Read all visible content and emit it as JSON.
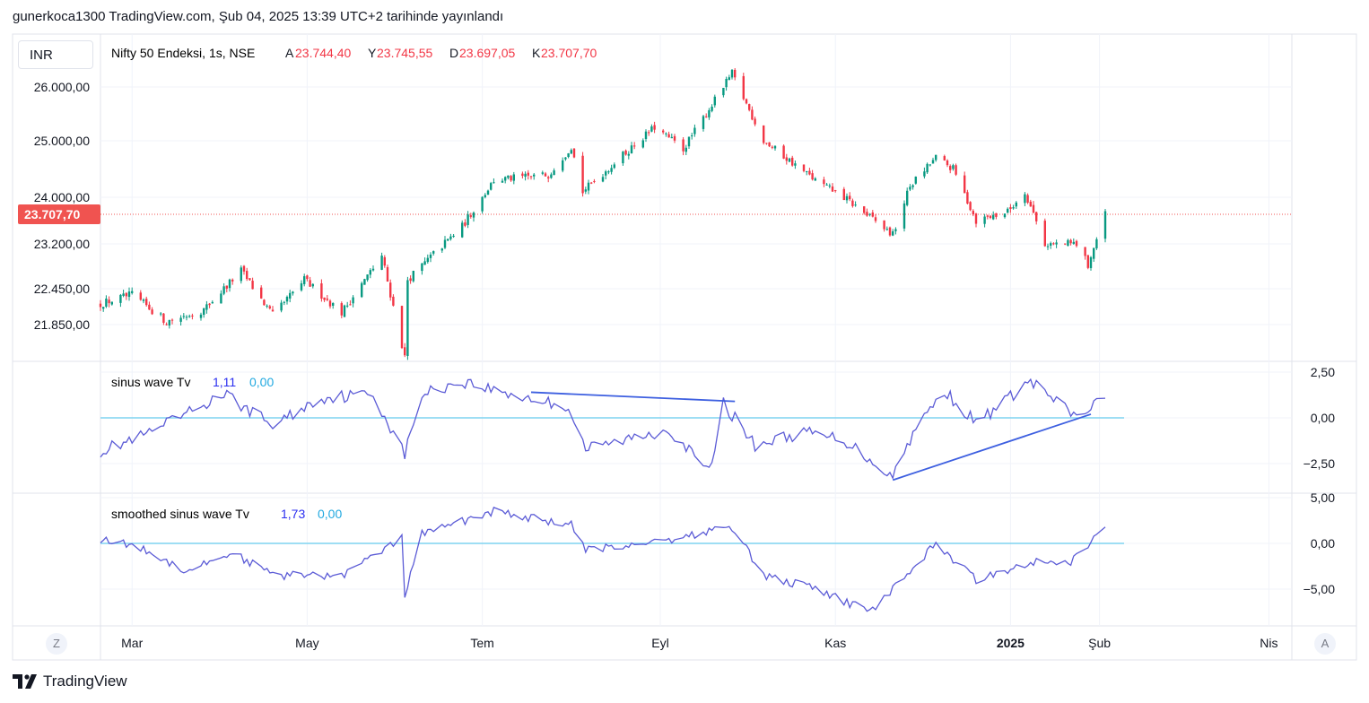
{
  "header": {
    "published_line": "gunerkoca1300 TradingView.com, Şub 04, 2025 13:39 UTC+2 tarihinde yayınlandı"
  },
  "currency_button": "INR",
  "main_pane": {
    "symbol": "Nifty 50 Endeksi, 1s, NSE",
    "ohlc": [
      {
        "k": "A",
        "v": "23.744,40"
      },
      {
        "k": "Y",
        "v": "23.745,55"
      },
      {
        "k": "D",
        "v": "23.697,05"
      },
      {
        "k": "K",
        "v": "23.707,70"
      }
    ],
    "price_ticks": [
      "26.000,00",
      "25.000,00",
      "24.000,00",
      "23.200,00",
      "22.450,00",
      "21.850,00"
    ],
    "last_price_label": "23.707,70",
    "last_price": 23707.7
  },
  "sinus_pane": {
    "title": "sinus wave Tv",
    "v1": "1,11",
    "v2": "0,00",
    "ticks": [
      "2,50",
      "0,00",
      "−2,50"
    ]
  },
  "smoothed_pane": {
    "title": "smoothed sinus wave Tv",
    "v1": "1,73",
    "v2": "0,00",
    "ticks": [
      "5,00",
      "0,00",
      "−5,00"
    ]
  },
  "time_axis": {
    "labels": [
      {
        "text": "Mar",
        "bold": false
      },
      {
        "text": "May",
        "bold": false
      },
      {
        "text": "Tem",
        "bold": false
      },
      {
        "text": "Eyl",
        "bold": false
      },
      {
        "text": "Kas",
        "bold": false
      },
      {
        "text": "2025",
        "bold": true
      },
      {
        "text": "Şub",
        "bold": false
      },
      {
        "text": "Nis",
        "bold": false
      }
    ]
  },
  "buttons": {
    "z_label": "Z",
    "a_label": "A"
  },
  "footer": {
    "logo_text": "TradingView"
  },
  "colors": {
    "up": "#089981",
    "down": "#f23645",
    "osc": "#5b5bd6",
    "zero_line": "#7fd3f0",
    "trend_line": "#3d5fe0",
    "last_price_bg": "#f05350",
    "label_blue": "#2a2ef0",
    "label_cyan": "#22a9e0"
  },
  "chart_data": {
    "type": "candlestick",
    "series_anchors": [
      [
        "2024-02-19",
        22200
      ],
      [
        "2024-03-01",
        22350
      ],
      [
        "2024-03-13",
        21900
      ],
      [
        "2024-03-26",
        22100
      ],
      [
        "2024-04-08",
        22750
      ],
      [
        "2024-04-19",
        22000
      ],
      [
        "2024-04-30",
        22600
      ],
      [
        "2024-05-13",
        22050
      ],
      [
        "2024-05-27",
        23000
      ],
      [
        "2024-06-04",
        21300
      ],
      [
        "2024-06-05",
        22600
      ],
      [
        "2024-06-24",
        23500
      ],
      [
        "2024-07-05",
        24300
      ],
      [
        "2024-07-24",
        24400
      ],
      [
        "2024-08-01",
        24900
      ],
      [
        "2024-08-05",
        24100
      ],
      [
        "2024-08-30",
        25250
      ],
      [
        "2024-09-09",
        24850
      ],
      [
        "2024-09-26",
        26250
      ],
      [
        "2024-10-07",
        25000
      ],
      [
        "2024-10-25",
        24300
      ],
      [
        "2024-11-04",
        24000
      ],
      [
        "2024-11-21",
        23350
      ],
      [
        "2024-11-27",
        24200
      ],
      [
        "2024-12-06",
        24700
      ],
      [
        "2024-12-12",
        24500
      ],
      [
        "2024-12-20",
        23600
      ],
      [
        "2024-12-31",
        23750
      ],
      [
        "2025-01-06",
        24100
      ],
      [
        "2025-01-13",
        23200
      ],
      [
        "2025-01-24",
        23200
      ],
      [
        "2025-01-28",
        22850
      ],
      [
        "2025-02-03",
        23700
      ]
    ],
    "sinus_anchors": [
      [
        "2024-02-19",
        -1.8
      ],
      [
        "2024-03-05",
        -1.0
      ],
      [
        "2024-03-21",
        0.3
      ],
      [
        "2024-04-02",
        1.3
      ],
      [
        "2024-04-19",
        -0.4
      ],
      [
        "2024-05-06",
        1.1
      ],
      [
        "2024-05-24",
        1.3
      ],
      [
        "2024-06-04",
        -2.0
      ],
      [
        "2024-06-10",
        1.3
      ],
      [
        "2024-06-24",
        2.0
      ],
      [
        "2024-07-08",
        1.4
      ],
      [
        "2024-07-31",
        0.6
      ],
      [
        "2024-08-06",
        -1.7
      ],
      [
        "2024-08-20",
        -1.2
      ],
      [
        "2024-09-04",
        -0.6
      ],
      [
        "2024-09-18",
        -3.0
      ],
      [
        "2024-09-23",
        0.8
      ],
      [
        "2024-10-04",
        -1.5
      ],
      [
        "2024-10-21",
        -0.8
      ],
      [
        "2024-11-04",
        -1.2
      ],
      [
        "2024-11-21",
        -3.2
      ],
      [
        "2024-11-28",
        -0.8
      ],
      [
        "2024-12-09",
        1.5
      ],
      [
        "2024-12-20",
        -0.3
      ],
      [
        "2025-01-08",
        2.0
      ],
      [
        "2025-01-24",
        0.0
      ],
      [
        "2025-02-03",
        1.1
      ]
    ],
    "smoothed_anchors": [
      [
        "2024-02-19",
        0.5
      ],
      [
        "2024-03-04",
        -0.5
      ],
      [
        "2024-03-20",
        -3.0
      ],
      [
        "2024-04-05",
        -1.0
      ],
      [
        "2024-04-19",
        -3.5
      ],
      [
        "2024-05-13",
        -3.5
      ],
      [
        "2024-06-03",
        0.5
      ],
      [
        "2024-06-04",
        -5.5
      ],
      [
        "2024-06-10",
        1.0
      ],
      [
        "2024-07-05",
        3.5
      ],
      [
        "2024-08-01",
        2.0
      ],
      [
        "2024-08-06",
        -0.8
      ],
      [
        "2024-09-05",
        0.5
      ],
      [
        "2024-09-26",
        1.8
      ],
      [
        "2024-10-07",
        -3.5
      ],
      [
        "2024-10-25",
        -5.0
      ],
      [
        "2024-11-13",
        -7.5
      ],
      [
        "2024-11-21",
        -5.0
      ],
      [
        "2024-12-06",
        0.0
      ],
      [
        "2024-12-20",
        -4.0
      ],
      [
        "2025-01-08",
        -2.0
      ],
      [
        "2025-01-22",
        -2.0
      ],
      [
        "2025-02-03",
        1.7
      ]
    ],
    "trend_lines": [
      {
        "pane": "sinus",
        "from": [
          "2024-07-18",
          1.4
        ],
        "to": [
          "2024-09-27",
          0.9
        ]
      },
      {
        "pane": "sinus",
        "from": [
          "2024-11-21",
          -3.4
        ],
        "to": [
          "2025-01-29",
          0.2
        ]
      }
    ]
  }
}
